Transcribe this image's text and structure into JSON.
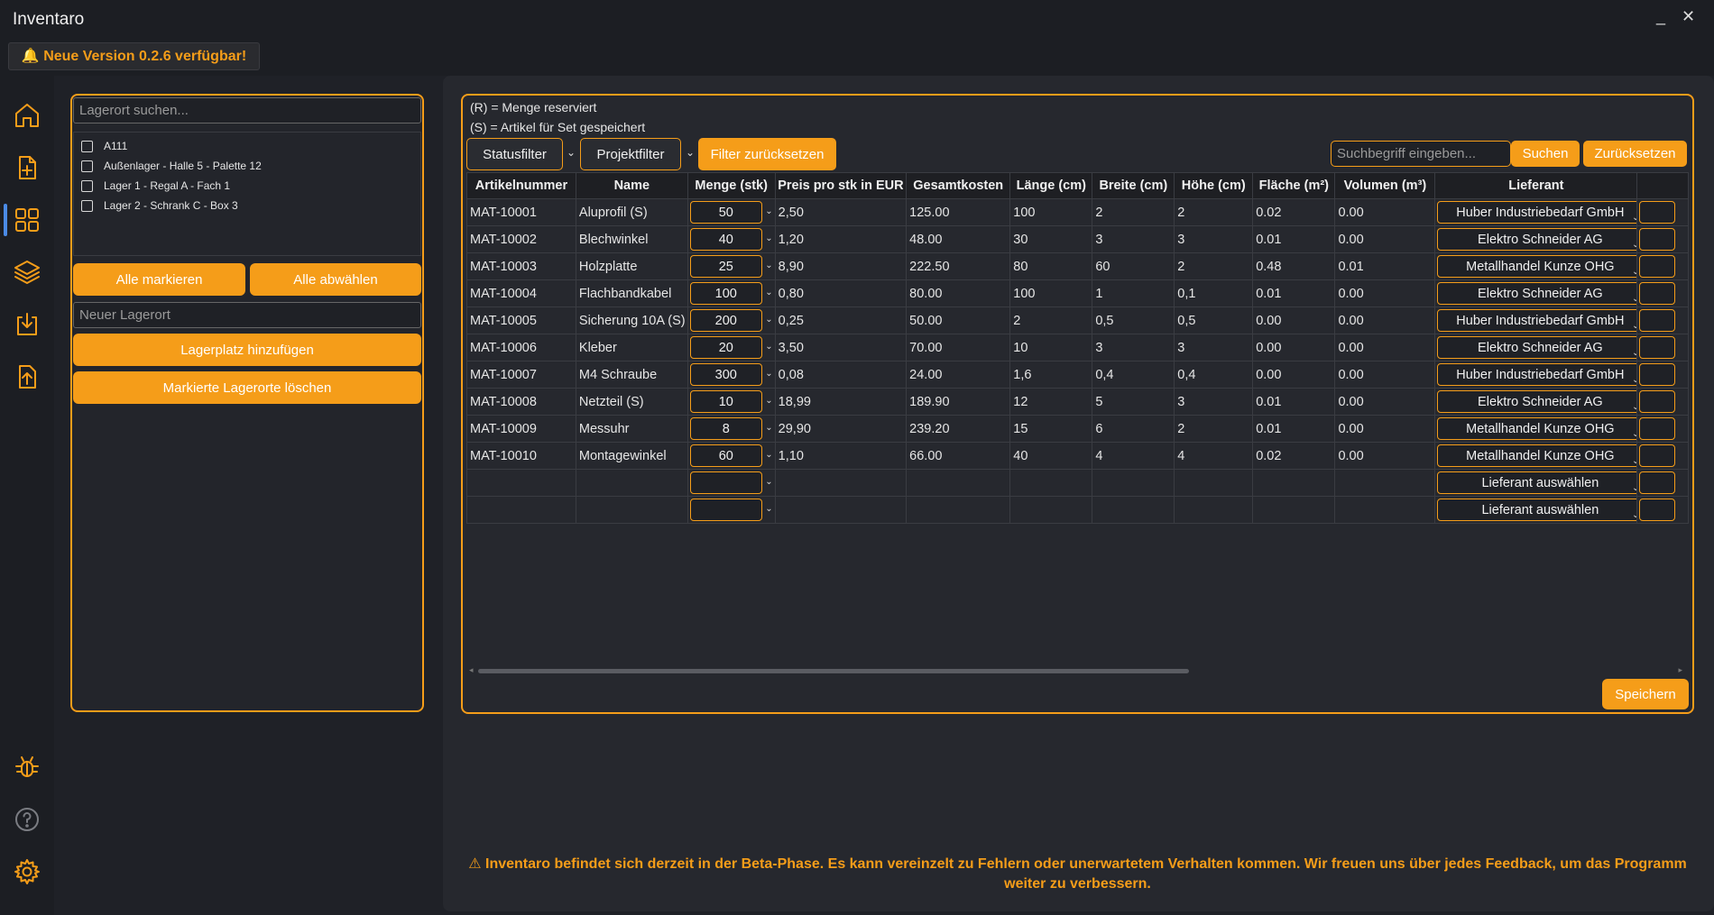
{
  "window": {
    "title": "Inventaro",
    "minimize": "_",
    "close": "✕"
  },
  "banner": "🔔 Neue Version 0.2.6 verfügbar!",
  "sidebar": {
    "items": [
      {
        "name": "home-icon"
      },
      {
        "name": "file-add-icon"
      },
      {
        "name": "grid-icon"
      },
      {
        "name": "layers-icon"
      },
      {
        "name": "import-icon"
      },
      {
        "name": "export-icon"
      },
      {
        "name": "bug-icon"
      },
      {
        "name": "help-icon"
      },
      {
        "name": "settings-icon"
      }
    ],
    "accent": "#f59d19",
    "active_indicator": "#4b8be6"
  },
  "storage": {
    "search_placeholder": "Lagerort suchen...",
    "locations": [
      "A111",
      "Außenlager - Halle 5 - Palette 12",
      "Lager 1 - Regal A - Fach 1",
      "Lager 2 - Schrank C - Box 3"
    ],
    "select_all": "Alle markieren",
    "deselect_all": "Alle abwählen",
    "new_placeholder": "Neuer Lagerort",
    "add_button": "Lagerplatz hinzufügen",
    "delete_button": "Markierte Lagerorte löschen"
  },
  "legend": {
    "reserved": "(R) = Menge reserviert",
    "set": "(S) = Artikel für Set gespeichert"
  },
  "filters": {
    "status": "Statusfilter",
    "project": "Projektfilter",
    "reset": "Filter zurücksetzen",
    "search_placeholder": "Suchbegriff eingeben...",
    "search": "Suchen",
    "reset_search": "Zurücksetzen"
  },
  "table": {
    "headers": [
      "Artikelnummer",
      "Name",
      "Menge (stk)",
      "Preis pro stk in EUR",
      "Gesamtkosten",
      "Länge (cm)",
      "Breite (cm)",
      "Höhe (cm)",
      "Fläche (m²)",
      "Volumen (m³)",
      "Lieferant"
    ],
    "rows": [
      [
        "MAT-10001",
        "Aluprofil (S)",
        "50",
        "2,50",
        "125.00",
        "100",
        "2",
        "2",
        "0.02",
        "0.00",
        "Huber Industriebedarf GmbH"
      ],
      [
        "MAT-10002",
        "Blechwinkel",
        "40",
        "1,20",
        "48.00",
        "30",
        "3",
        "3",
        "0.01",
        "0.00",
        "Elektro Schneider AG"
      ],
      [
        "MAT-10003",
        "Holzplatte",
        "25",
        "8,90",
        "222.50",
        "80",
        "60",
        "2",
        "0.48",
        "0.01",
        "Metallhandel Kunze OHG"
      ],
      [
        "MAT-10004",
        "Flachbandkabel",
        "100",
        "0,80",
        "80.00",
        "100",
        "1",
        "0,1",
        "0.01",
        "0.00",
        "Elektro Schneider AG"
      ],
      [
        "MAT-10005",
        "Sicherung 10A (S)",
        "200",
        "0,25",
        "50.00",
        "2",
        "0,5",
        "0,5",
        "0.00",
        "0.00",
        "Huber Industriebedarf GmbH"
      ],
      [
        "MAT-10006",
        "Kleber",
        "20",
        "3,50",
        "70.00",
        "10",
        "3",
        "3",
        "0.00",
        "0.00",
        "Elektro Schneider AG"
      ],
      [
        "MAT-10007",
        "M4 Schraube",
        "300",
        "0,08",
        "24.00",
        "1,6",
        "0,4",
        "0,4",
        "0.00",
        "0.00",
        "Huber Industriebedarf GmbH"
      ],
      [
        "MAT-10008",
        "Netzteil (S)",
        "10",
        "18,99",
        "189.90",
        "12",
        "5",
        "3",
        "0.01",
        "0.00",
        "Elektro Schneider AG"
      ],
      [
        "MAT-10009",
        "Messuhr",
        "8",
        "29,90",
        "239.20",
        "15",
        "6",
        "2",
        "0.01",
        "0.00",
        "Metallhandel Kunze OHG"
      ],
      [
        "MAT-10010",
        "Montagewinkel",
        "60",
        "1,10",
        "66.00",
        "40",
        "4",
        "4",
        "0.02",
        "0.00",
        "Metallhandel Kunze OHG"
      ],
      [
        "",
        "",
        "",
        "",
        "",
        "",
        "",
        "",
        "",
        "",
        "Lieferant auswählen"
      ],
      [
        "",
        "",
        "",
        "",
        "",
        "",
        "",
        "",
        "",
        "",
        "Lieferant auswählen"
      ]
    ]
  },
  "save_button": "Speichern",
  "beta_warning_line1": "⚠ Inventaro befindet sich derzeit in der Beta-Phase. Es kann vereinzelt zu Fehlern oder unerwartetem Verhalten kommen. Wir freuen uns über jedes Feedback, um das Programm",
  "beta_warning_line2": "weiter zu verbessern."
}
